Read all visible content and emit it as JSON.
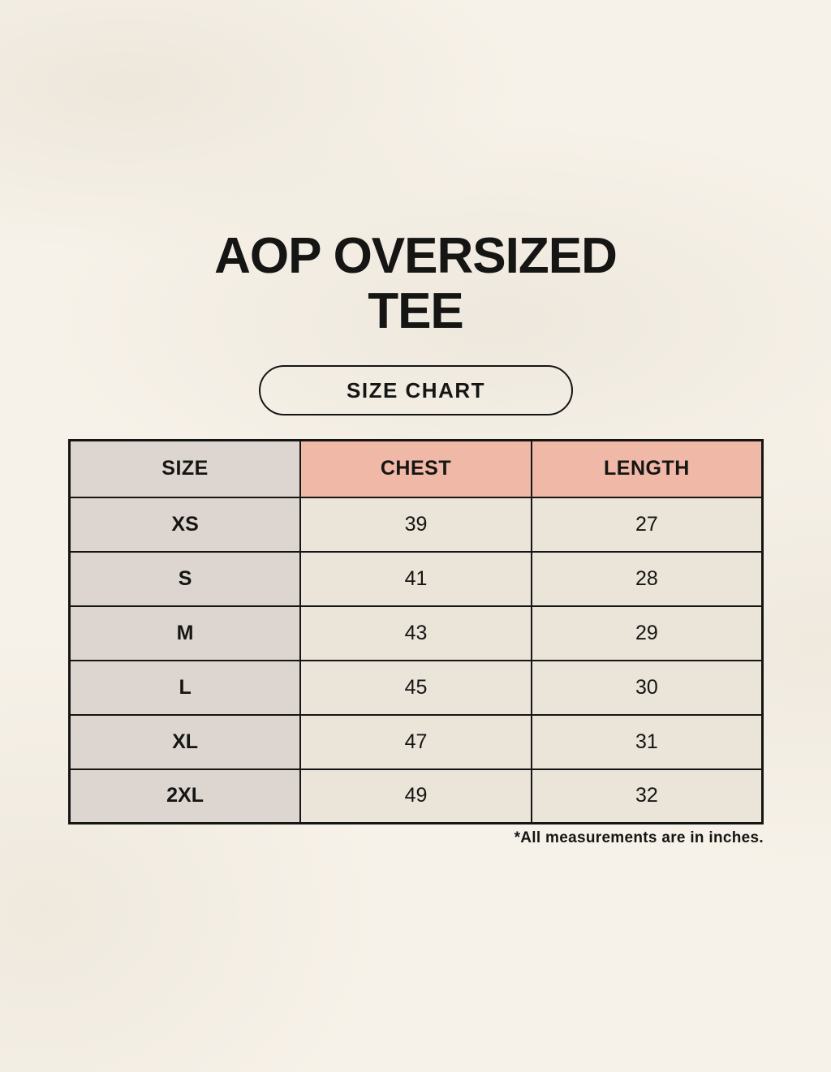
{
  "page": {
    "title_line1": "AOP OVERSIZED",
    "title_line2": "TEE",
    "button_label": "SIZE CHART",
    "footnote": "*All measurements are in inches."
  },
  "colors": {
    "background": "#f7f2e9",
    "text": "#151514",
    "header_accent": "#f0b8a6",
    "size_column_bg": "#ddd6d0",
    "data_cell_bg": "#eae4d9",
    "table_border": "#151514"
  },
  "chart_data": {
    "type": "table",
    "title": "AOP OVERSIZED TEE",
    "columns": [
      "SIZE",
      "CHEST",
      "LENGTH"
    ],
    "rows": [
      [
        "XS",
        39,
        27
      ],
      [
        "S",
        41,
        28
      ],
      [
        "M",
        43,
        29
      ],
      [
        "L",
        45,
        30
      ],
      [
        "XL",
        47,
        31
      ],
      [
        "2XL",
        49,
        32
      ]
    ],
    "units": "inches",
    "note": "*All measurements are in inches."
  }
}
